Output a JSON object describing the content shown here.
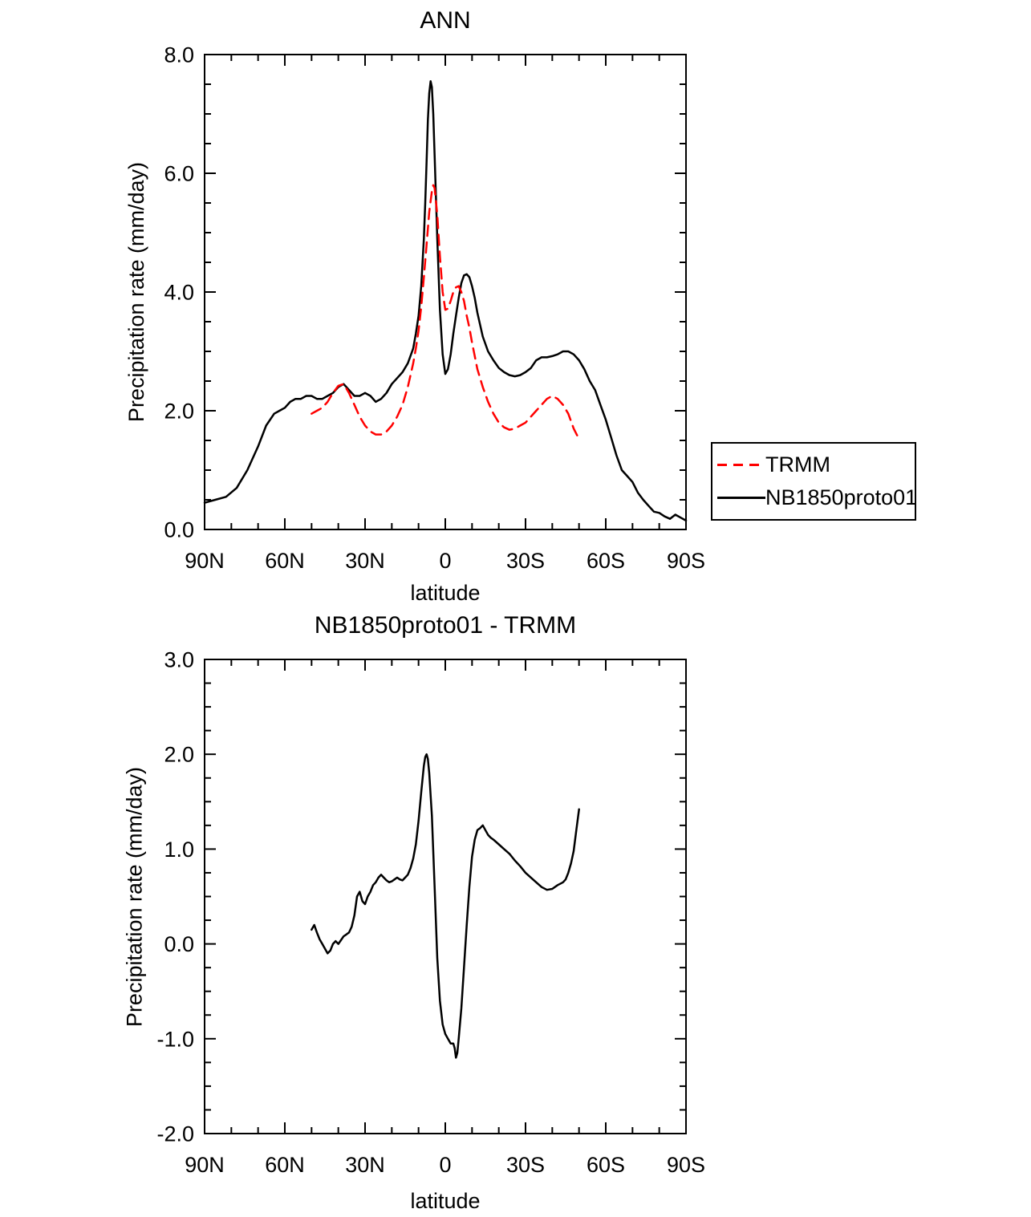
{
  "figure": {
    "background": "#ffffff",
    "axis_color": "#000000"
  },
  "legend": {
    "entries": [
      {
        "label": "TRMM",
        "color": "#ff0000",
        "dashed": true
      },
      {
        "label": "NB1850proto01",
        "color": "#000000",
        "dashed": false
      }
    ]
  },
  "chart_data": [
    {
      "type": "line",
      "title": "ANN",
      "xlabel": "latitude",
      "ylabel": "Precipitation rate (mm/day)",
      "xlim": [
        90,
        -90
      ],
      "ylim": [
        0,
        8
      ],
      "grid": false,
      "legend_position": "right",
      "xticks": [
        {
          "value": 90,
          "label": "90N"
        },
        {
          "value": 60,
          "label": "60N"
        },
        {
          "value": 30,
          "label": "30N"
        },
        {
          "value": 0,
          "label": "0"
        },
        {
          "value": -30,
          "label": "30S"
        },
        {
          "value": -60,
          "label": "60S"
        },
        {
          "value": -90,
          "label": "90S"
        }
      ],
      "yticks": [
        {
          "value": 0,
          "label": "0.0"
        },
        {
          "value": 2,
          "label": "2.0"
        },
        {
          "value": 4,
          "label": "4.0"
        },
        {
          "value": 6,
          "label": "6.0"
        },
        {
          "value": 8,
          "label": "8.0"
        }
      ],
      "x_minor_step": 10,
      "y_minor_step": 0.5,
      "series": [
        {
          "name": "NB1850proto01",
          "color": "#000000",
          "dashed": false,
          "x": [
            90,
            86,
            82,
            78,
            74,
            70,
            67,
            64,
            62,
            60,
            58,
            56,
            54,
            52,
            50,
            48,
            46,
            44,
            42,
            40,
            38,
            36,
            34,
            32,
            30,
            28,
            26,
            24,
            22,
            20,
            18,
            16,
            14,
            12,
            11,
            10,
            9,
            8,
            7.5,
            7,
            6.5,
            6,
            5.5,
            5,
            4.5,
            4,
            3,
            2,
            1,
            0,
            -1,
            -2,
            -3,
            -4,
            -5,
            -6,
            -7,
            -8,
            -9,
            -10,
            -11,
            -12,
            -14,
            -16,
            -18,
            -20,
            -22,
            -24,
            -26,
            -28,
            -30,
            -32,
            -34,
            -36,
            -38,
            -40,
            -42,
            -44,
            -46,
            -48,
            -50,
            -52,
            -54,
            -56,
            -58,
            -60,
            -62,
            -64,
            -66,
            -68,
            -70,
            -72,
            -74,
            -76,
            -78,
            -80,
            -82,
            -84,
            -86,
            -88,
            -90
          ],
          "y": [
            0.45,
            0.5,
            0.55,
            0.7,
            1.0,
            1.4,
            1.75,
            1.95,
            2.0,
            2.05,
            2.15,
            2.2,
            2.2,
            2.25,
            2.25,
            2.2,
            2.2,
            2.25,
            2.3,
            2.4,
            2.45,
            2.35,
            2.25,
            2.25,
            2.3,
            2.25,
            2.15,
            2.2,
            2.3,
            2.45,
            2.55,
            2.65,
            2.8,
            3.05,
            3.3,
            3.6,
            4.1,
            4.9,
            5.5,
            6.2,
            6.9,
            7.35,
            7.55,
            7.45,
            7.0,
            6.3,
            4.9,
            3.7,
            2.95,
            2.62,
            2.7,
            2.95,
            3.3,
            3.6,
            3.9,
            4.15,
            4.28,
            4.3,
            4.25,
            4.1,
            3.9,
            3.65,
            3.25,
            3.0,
            2.85,
            2.72,
            2.65,
            2.6,
            2.58,
            2.6,
            2.65,
            2.72,
            2.85,
            2.9,
            2.9,
            2.92,
            2.95,
            3.0,
            3.0,
            2.95,
            2.85,
            2.7,
            2.5,
            2.35,
            2.1,
            1.85,
            1.55,
            1.25,
            1.0,
            0.9,
            0.8,
            0.62,
            0.5,
            0.4,
            0.3,
            0.28,
            0.22,
            0.18,
            0.25,
            0.2,
            0.15
          ]
        },
        {
          "name": "TRMM",
          "color": "#ff0000",
          "dashed": true,
          "x": [
            50,
            48,
            46,
            44,
            42,
            40,
            38,
            36,
            34,
            32,
            30,
            28,
            26,
            24,
            22,
            20,
            18,
            16,
            14,
            12,
            11,
            10,
            9,
            8,
            7,
            6,
            5,
            4.5,
            4,
            3,
            2,
            1,
            0,
            -1,
            -2,
            -3,
            -4,
            -5,
            -6,
            -7,
            -8,
            -9,
            -10,
            -12,
            -14,
            -16,
            -18,
            -20,
            -22,
            -24,
            -26,
            -28,
            -30,
            -32,
            -34,
            -36,
            -38,
            -40,
            -42,
            -44,
            -46,
            -48,
            -50
          ],
          "y": [
            1.95,
            2.0,
            2.05,
            2.15,
            2.3,
            2.42,
            2.45,
            2.3,
            2.1,
            1.9,
            1.75,
            1.65,
            1.6,
            1.6,
            1.65,
            1.75,
            1.9,
            2.1,
            2.4,
            2.8,
            3.05,
            3.35,
            3.75,
            4.25,
            4.8,
            5.35,
            5.7,
            5.8,
            5.75,
            5.3,
            4.6,
            4.0,
            3.7,
            3.72,
            3.85,
            4.0,
            4.08,
            4.1,
            4.0,
            3.85,
            3.6,
            3.4,
            3.15,
            2.7,
            2.4,
            2.15,
            1.95,
            1.8,
            1.72,
            1.68,
            1.7,
            1.75,
            1.8,
            1.9,
            2.0,
            2.1,
            2.2,
            2.25,
            2.2,
            2.1,
            1.95,
            1.7,
            1.52
          ]
        }
      ]
    },
    {
      "type": "line",
      "title": "NB1850proto01 - TRMM",
      "xlabel": "latitude",
      "ylabel": "Precipitation rate (mm/day)",
      "xlim": [
        90,
        -90
      ],
      "ylim": [
        -2,
        3
      ],
      "grid": false,
      "xticks": [
        {
          "value": 90,
          "label": "90N"
        },
        {
          "value": 60,
          "label": "60N"
        },
        {
          "value": 30,
          "label": "30N"
        },
        {
          "value": 0,
          "label": "0"
        },
        {
          "value": -30,
          "label": "30S"
        },
        {
          "value": -60,
          "label": "60S"
        },
        {
          "value": -90,
          "label": "90S"
        }
      ],
      "yticks": [
        {
          "value": -2,
          "label": "-2.0"
        },
        {
          "value": -1,
          "label": "-1.0"
        },
        {
          "value": 0,
          "label": "0.0"
        },
        {
          "value": 1,
          "label": "1.0"
        },
        {
          "value": 2,
          "label": "2.0"
        },
        {
          "value": 3,
          "label": "3.0"
        }
      ],
      "x_minor_step": 10,
      "y_minor_step": 0.25,
      "series": [
        {
          "name": "NB1850proto01 - TRMM",
          "color": "#000000",
          "dashed": false,
          "x": [
            50,
            49,
            48,
            47,
            46,
            45,
            44,
            43,
            42,
            41,
            40,
            39,
            38,
            37,
            36,
            35,
            34,
            33,
            32,
            31,
            30,
            29,
            28,
            27,
            26,
            25,
            24,
            23,
            22,
            21,
            20,
            19,
            18,
            17,
            16,
            15,
            14,
            13,
            12,
            11,
            10,
            9,
            8,
            7.5,
            7,
            6.5,
            6,
            5,
            4,
            3,
            2,
            1,
            0,
            -1,
            -2,
            -3,
            -3.5,
            -4,
            -4.5,
            -5,
            -6,
            -7,
            -8,
            -9,
            -10,
            -11,
            -12,
            -13,
            -14,
            -15,
            -16,
            -17,
            -18,
            -20,
            -22,
            -24,
            -26,
            -28,
            -30,
            -32,
            -34,
            -36,
            -38,
            -40,
            -42,
            -44,
            -45,
            -46,
            -47,
            -48,
            -49,
            -50
          ],
          "y": [
            0.15,
            0.2,
            0.12,
            0.05,
            0.0,
            -0.05,
            -0.1,
            -0.07,
            0.0,
            0.03,
            0.0,
            0.04,
            0.08,
            0.1,
            0.12,
            0.18,
            0.3,
            0.5,
            0.55,
            0.45,
            0.42,
            0.5,
            0.55,
            0.62,
            0.65,
            0.7,
            0.73,
            0.7,
            0.67,
            0.65,
            0.66,
            0.68,
            0.7,
            0.68,
            0.67,
            0.7,
            0.73,
            0.8,
            0.9,
            1.05,
            1.3,
            1.6,
            1.88,
            1.97,
            2.0,
            1.95,
            1.8,
            1.35,
            0.6,
            -0.15,
            -0.6,
            -0.85,
            -0.95,
            -1.0,
            -1.05,
            -1.05,
            -1.1,
            -1.2,
            -1.15,
            -1.0,
            -0.68,
            -0.25,
            0.2,
            0.6,
            0.92,
            1.1,
            1.2,
            1.22,
            1.25,
            1.2,
            1.15,
            1.12,
            1.1,
            1.05,
            1.0,
            0.95,
            0.88,
            0.82,
            0.75,
            0.7,
            0.65,
            0.6,
            0.57,
            0.58,
            0.62,
            0.65,
            0.68,
            0.75,
            0.85,
            0.98,
            1.2,
            1.42
          ]
        }
      ]
    }
  ]
}
